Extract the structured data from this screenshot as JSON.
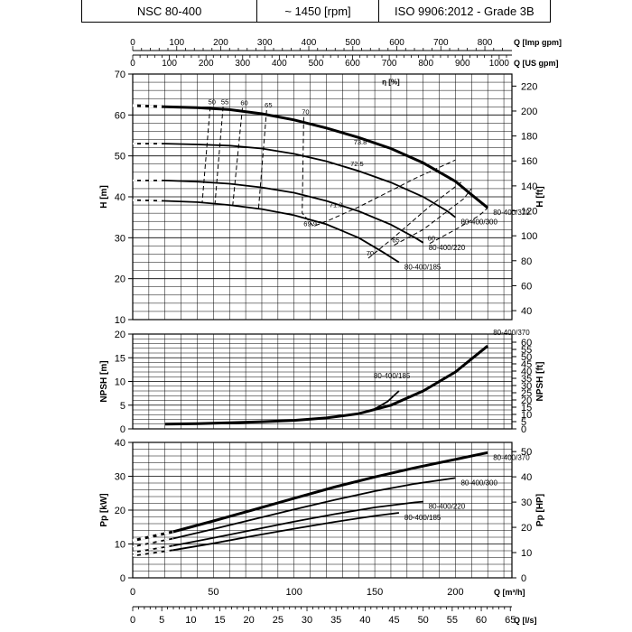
{
  "header": {
    "model": "NSC 80-400",
    "speed": "~ 1450 [rpm]",
    "standard": "ISO 9906:2012 - Grade 3B"
  },
  "chart_data": {
    "type": "line",
    "top_axes": {
      "imp_gpm": {
        "label": "Q [Imp gpm]",
        "ticks": [
          0,
          100,
          200,
          300,
          400,
          500,
          600,
          700,
          800
        ]
      },
      "us_gpm": {
        "label": "Q [US gpm]",
        "ticks": [
          0,
          100,
          200,
          300,
          400,
          500,
          600,
          700,
          800,
          900,
          1000
        ]
      }
    },
    "bottom_axes": {
      "m3h": {
        "label": "Q [m³/h]",
        "ticks": [
          0,
          50,
          100,
          150,
          200
        ]
      },
      "ls": {
        "label": "Q [l/s]",
        "ticks": [
          0,
          5,
          10,
          15,
          20,
          25,
          30,
          35,
          40,
          45,
          50,
          55,
          60,
          65
        ]
      }
    },
    "xlim": [
      0,
      235
    ],
    "panels": [
      {
        "name": "head",
        "ylabel": "H [m]",
        "ylabel_right": "H [ft]",
        "ylim": [
          10,
          70
        ],
        "yticks": [
          10,
          20,
          30,
          40,
          50,
          60,
          70
        ],
        "yticks_right": [
          40,
          60,
          80,
          100,
          120,
          140,
          160,
          180,
          200,
          220
        ],
        "eta_label": "η [%]",
        "series": [
          {
            "name": "80-400/370",
            "x": [
              0,
              20,
              40,
              60,
              80,
              100,
              120,
              140,
              160,
              180,
              200,
              210,
              220
            ],
            "y": [
              62.3,
              62.0,
              61.8,
              61.3,
              60.3,
              58.8,
              56.8,
              54.5,
              51.8,
              48.3,
              43.8,
              40.5,
              37.3
            ]
          },
          {
            "name": "80-400/300",
            "x": [
              0,
              20,
              40,
              60,
              80,
              100,
              120,
              140,
              160,
              180,
              195,
              200
            ],
            "y": [
              53.0,
              53.0,
              52.8,
              52.5,
              51.8,
              50.5,
              48.7,
              46.3,
              43.5,
              40.0,
              36.5,
              35.0
            ]
          },
          {
            "name": "80-400/220",
            "x": [
              0,
              20,
              40,
              60,
              80,
              100,
              120,
              140,
              160,
              175,
              180
            ],
            "y": [
              44.0,
              44.0,
              43.7,
              43.2,
              42.3,
              41.0,
              39.0,
              36.5,
              33.2,
              30.0,
              28.8
            ]
          },
          {
            "name": "80-400/185",
            "x": [
              0,
              20,
              40,
              60,
              80,
              100,
              120,
              140,
              155,
              165
            ],
            "y": [
              39.2,
              39.0,
              38.7,
              38.0,
              37.0,
              35.5,
              33.3,
              30.0,
              26.5,
              24.0
            ]
          }
        ],
        "efficiency_lines": [
          {
            "label": "50",
            "x": [
              48,
              43
            ],
            "y": [
              62.0,
              38.5
            ]
          },
          {
            "label": "55",
            "x": [
              56,
              51
            ],
            "y": [
              62.0,
              38.3
            ]
          },
          {
            "label": "60",
            "x": [
              68,
              62
            ],
            "y": [
              61.7,
              38.0
            ]
          },
          {
            "label": "65",
            "x": [
              83,
              78
            ],
            "y": [
              61.2,
              37.2
            ]
          },
          {
            "label": "70",
            "x": [
              106,
              105,
              112,
              120,
              140,
              175,
              200
            ],
            "y": [
              59.5,
              36.0,
              32.8,
              34.0,
              37.5,
              44.5,
              49.0
            ]
          },
          {
            "label": "70",
            "x": [
              146,
              160,
              185,
              205
            ],
            "y": [
              25.0,
              29.5,
              38.0,
              44.0
            ]
          },
          {
            "label": "65",
            "x": [
              162,
              180,
              205,
              210
            ],
            "y": [
              28.2,
              32.0,
              39.5,
              42.0
            ]
          },
          {
            "label": "60",
            "x": [
              184,
              200,
              215,
              220
            ],
            "y": [
              28.6,
              32.0,
              35.5,
              37.3
            ]
          }
        ],
        "annotations": [
          "73.8",
          "72.5",
          "71.3",
          "69.9"
        ]
      },
      {
        "name": "npsh",
        "ylabel": "NPSH [m]",
        "ylabel_right": "NPSH [ft]",
        "ylim": [
          0,
          20
        ],
        "yticks": [
          0,
          5,
          10,
          15,
          20
        ],
        "yticks_right": [
          0,
          5,
          10,
          15,
          20,
          25,
          30,
          35,
          40,
          45,
          50,
          55,
          60
        ],
        "series": [
          {
            "name": "80-400/370",
            "x": [
              20,
              40,
              60,
              80,
              100,
              120,
              140,
              160,
              180,
              200,
              220
            ],
            "y": [
              1.0,
              1.1,
              1.3,
              1.5,
              1.8,
              2.3,
              3.2,
              5.0,
              8.0,
              12.0,
              17.5
            ]
          },
          {
            "name": "80-400/185",
            "x": [
              150,
              158,
              165
            ],
            "y": [
              4.2,
              5.8,
              8.0
            ]
          }
        ]
      },
      {
        "name": "power",
        "ylabel": "Pp [kW]",
        "ylabel_right": "Pp [HP]",
        "ylim": [
          0,
          40
        ],
        "yticks": [
          0,
          10,
          20,
          30,
          40
        ],
        "yticks_right": [
          0,
          10,
          20,
          30,
          40,
          50
        ],
        "series": [
          {
            "name": "80-400/370",
            "x": [
              0,
              25,
              50,
              75,
              100,
              125,
              150,
              175,
              200,
              220
            ],
            "y": [
              11.0,
              13.6,
              16.8,
              20.1,
              23.5,
              26.8,
              29.8,
              32.5,
              35.0,
              37.0
            ]
          },
          {
            "name": "80-400/300",
            "x": [
              0,
              25,
              50,
              75,
              100,
              125,
              150,
              175,
              200
            ],
            "y": [
              9.2,
              11.6,
              14.4,
              17.3,
              20.2,
              23.0,
              25.6,
              27.8,
              29.5
            ]
          },
          {
            "name": "80-400/220",
            "x": [
              0,
              25,
              50,
              75,
              100,
              125,
              150,
              175,
              180
            ],
            "y": [
              7.5,
              9.5,
              11.8,
              14.2,
              16.6,
              18.8,
              20.8,
              22.3,
              22.5
            ]
          },
          {
            "name": "80-400/185",
            "x": [
              0,
              25,
              50,
              75,
              100,
              125,
              150,
              165
            ],
            "y": [
              6.5,
              8.2,
              10.2,
              12.4,
              14.5,
              16.5,
              18.3,
              19.2
            ]
          }
        ]
      }
    ]
  }
}
